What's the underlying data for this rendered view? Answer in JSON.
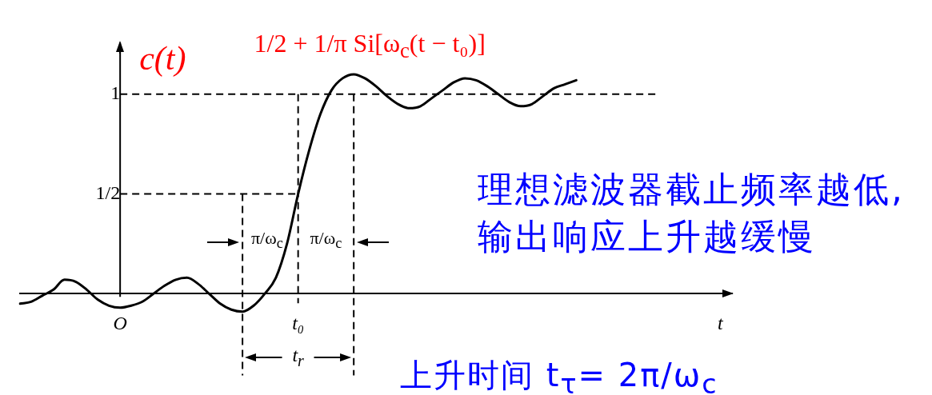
{
  "chart_data": {
    "type": "line",
    "ylabel": "c(t)",
    "xlabel": "t",
    "categories": [
      null,
      null,
      null,
      null,
      null,
      null,
      null,
      null,
      null,
      "O",
      null,
      null,
      null,
      null,
      null,
      null,
      null,
      null,
      null,
      null,
      null,
      null,
      null,
      null,
      null,
      "t₀",
      null,
      null,
      null,
      null,
      null,
      null,
      null,
      null,
      null,
      null,
      null,
      null,
      null,
      null,
      null,
      null,
      null,
      null,
      null,
      null,
      null,
      null,
      null,
      null,
      null,
      null,
      null,
      null,
      null,
      null,
      null,
      null,
      null,
      null,
      null,
      null,
      null,
      null,
      null
    ],
    "series": [
      {
        "name": "1/2 + 1/π Si[ω$_{c}$(t − t₀)]",
        "color": "#000000",
        "values": [
          -0.05,
          -0.04,
          -0.01,
          0.02,
          0.07,
          0.06,
          0.02,
          -0.03,
          -0.06,
          -0.07,
          -0.06,
          -0.04,
          0,
          0.04,
          0.07,
          0.08,
          0.05,
          0,
          -0.05,
          -0.08,
          -0.09,
          -0.06,
          0,
          0.08,
          0.25,
          0.5,
          0.72,
          0.9,
          1.02,
          1.08,
          1.1,
          1.08,
          1.04,
          0.99,
          0.95,
          0.93,
          0.94,
          0.98,
          1.02,
          1.06,
          1.08,
          1.07,
          1.04,
          1.0,
          0.96,
          0.94,
          0.95,
          0.99,
          1.03,
          1.05,
          1.07,
          null,
          null,
          null,
          null,
          null,
          null,
          null,
          null,
          null,
          null,
          null,
          null,
          null,
          null
        ]
      }
    ],
    "ylim": [
      -0.41,
      1.26
    ],
    "yticks": [
      {
        "value": 0.5,
        "label": "1/2"
      },
      1
    ],
    "ref_lines": [
      {
        "axis": "y",
        "value": 1,
        "line_style": "dashed"
      },
      {
        "axis": "y",
        "value": 0.5,
        "line_style": "dashed"
      },
      {
        "axis": "x",
        "value": "t₀",
        "line_style": "dashed"
      }
    ],
    "annotations": [
      "π/ω$_{c}$",
      "π/ω$_{c}$",
      "t$_{r}$",
      "理想滤波器截止频率越低,输出响应上升越缓慢",
      "上升时间 t$_{τ}$= 2π/ω$_{c}$"
    ]
  }
}
